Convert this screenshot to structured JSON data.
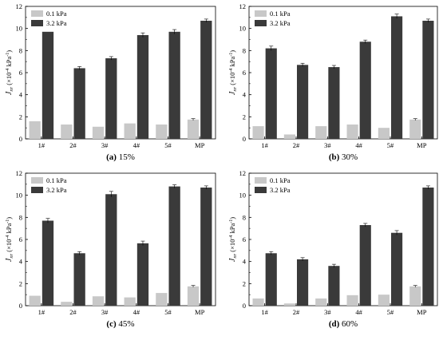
{
  "figure": {
    "colors": {
      "low": "#c8c8c8",
      "high": "#3a3a3a",
      "axis": "#000000",
      "error": "#000000"
    }
  },
  "chart_data": [
    {
      "type": "bar",
      "caption_label": "(a)",
      "caption_text": "15%",
      "ylabel_main": "J",
      "ylabel_sub": "nr",
      "ylabel_rest": " (×10",
      "ylabel_exp1": "-4",
      "ylabel_mid": " kPa",
      "ylabel_exp2": "-1",
      "ylabel_end": ")",
      "categories": [
        "1#",
        "2#",
        "3#",
        "4#",
        "5#",
        "MP"
      ],
      "ylim": [
        0,
        12
      ],
      "yticks": [
        "0",
        "2",
        "4",
        "6",
        "8",
        "10",
        "12"
      ],
      "legend_position": "top-left",
      "series": [
        {
          "name": "0.1 kPa",
          "values": [
            1.6,
            1.3,
            1.1,
            1.4,
            1.3,
            1.75
          ],
          "errors": [
            0,
            0,
            0,
            0,
            0,
            0.08
          ]
        },
        {
          "name": "3.2 kPa",
          "values": [
            9.7,
            6.4,
            7.3,
            9.4,
            9.7,
            10.7
          ],
          "errors": [
            0,
            0.15,
            0.15,
            0.2,
            0.2,
            0.15
          ]
        }
      ]
    },
    {
      "type": "bar",
      "caption_label": "(b)",
      "caption_text": "30%",
      "ylabel_main": "J",
      "ylabel_sub": "nr",
      "ylabel_rest": " (×10",
      "ylabel_exp1": "-4",
      "ylabel_mid": " kPa",
      "ylabel_exp2": "-1",
      "ylabel_end": ")",
      "categories": [
        "1#",
        "2#",
        "3#",
        "4#",
        "5#",
        "MP"
      ],
      "ylim": [
        0,
        12
      ],
      "yticks": [
        "0",
        "2",
        "4",
        "6",
        "8",
        "10",
        "12"
      ],
      "legend_position": "top-left",
      "series": [
        {
          "name": "0.1 kPa",
          "values": [
            1.15,
            0.4,
            1.15,
            1.3,
            1.0,
            1.75
          ],
          "errors": [
            0,
            0,
            0,
            0,
            0,
            0.08
          ]
        },
        {
          "name": "3.2 kPa",
          "values": [
            8.2,
            6.7,
            6.5,
            8.8,
            11.1,
            10.7
          ],
          "errors": [
            0.2,
            0.15,
            0.15,
            0.15,
            0.2,
            0.15
          ]
        }
      ]
    },
    {
      "type": "bar",
      "caption_label": "(c)",
      "caption_text": "45%",
      "ylabel_main": "J",
      "ylabel_sub": "nr",
      "ylabel_rest": " (×10",
      "ylabel_exp1": "-4",
      "ylabel_mid": " kPa",
      "ylabel_exp2": "-1",
      "ylabel_end": ")",
      "categories": [
        "1#",
        "2#",
        "3#",
        "4#",
        "5#",
        "MP"
      ],
      "ylim": [
        0,
        12
      ],
      "yticks": [
        "0",
        "2",
        "4",
        "6",
        "8",
        "10",
        "12"
      ],
      "legend_position": "top-left",
      "series": [
        {
          "name": "0.1 kPa",
          "values": [
            0.9,
            0.35,
            0.85,
            0.75,
            1.15,
            1.75
          ],
          "errors": [
            0,
            0,
            0,
            0,
            0,
            0.08
          ]
        },
        {
          "name": "3.2 kPa",
          "values": [
            7.7,
            4.75,
            10.1,
            5.65,
            10.8,
            10.7
          ],
          "errors": [
            0.2,
            0.15,
            0.25,
            0.2,
            0.15,
            0.15
          ]
        }
      ]
    },
    {
      "type": "bar",
      "caption_label": "(d)",
      "caption_text": "60%",
      "ylabel_main": "J",
      "ylabel_sub": "nr",
      "ylabel_rest": " (×10",
      "ylabel_exp1": "-4",
      "ylabel_mid": " kPa",
      "ylabel_exp2": "-1",
      "ylabel_end": ")",
      "categories": [
        "1#",
        "2#",
        "3#",
        "4#",
        "5#",
        "MP"
      ],
      "ylim": [
        0,
        12
      ],
      "yticks": [
        "0",
        "2",
        "4",
        "6",
        "8",
        "10",
        "12"
      ],
      "legend_position": "top-left",
      "series": [
        {
          "name": "0.1 kPa",
          "values": [
            0.65,
            0.2,
            0.65,
            0.95,
            1.0,
            1.75
          ],
          "errors": [
            0,
            0,
            0,
            0,
            0,
            0.08
          ]
        },
        {
          "name": "3.2 kPa",
          "values": [
            4.75,
            4.2,
            3.6,
            7.3,
            6.6,
            10.7
          ],
          "errors": [
            0.15,
            0.15,
            0.15,
            0.15,
            0.2,
            0.15
          ]
        }
      ]
    }
  ]
}
